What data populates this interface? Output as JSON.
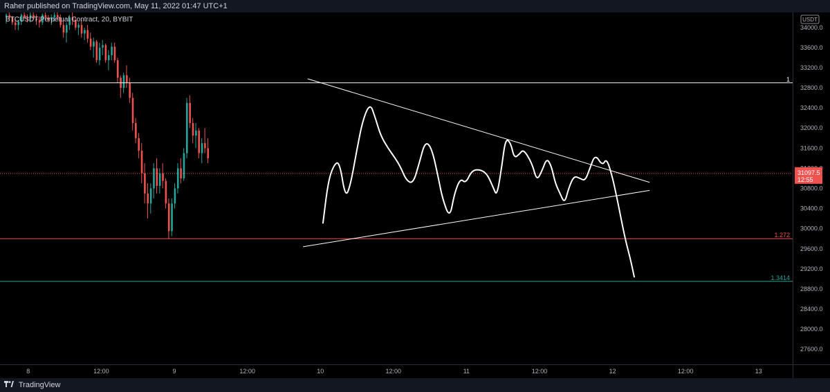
{
  "header": {
    "published": "Raher published on TradingView.com, May 11, 2022 01:47 UTC+1"
  },
  "symbol": {
    "label": "BTCUSDT Perpetual Contract, 20, BYBIT"
  },
  "currency": "USDT",
  "footer": {
    "brand": "TradingView"
  },
  "colors": {
    "background": "#000000",
    "up": "#26a69a",
    "down": "#ef5350",
    "projection": "#ffffff",
    "level_1": "#ffffff",
    "level_1272": "#ef5350",
    "level_13414": "#26a69a",
    "price_line": "#ef5350"
  },
  "chart_data": {
    "type": "candlestick",
    "title": "",
    "xlabel": "",
    "ylabel": "",
    "ylim": [
      27300,
      34300
    ],
    "y_ticks": [
      27600,
      28000,
      28400,
      28800,
      29200,
      29600,
      30000,
      30400,
      30800,
      31200,
      31600,
      32000,
      32400,
      32800,
      33200,
      33600,
      34000
    ],
    "y_tick_labels": [
      "27600.0",
      "28000.0",
      "28400.0",
      "28800.0",
      "29200.0",
      "29600.0",
      "30000.0",
      "30400.0",
      "30800.0",
      "31200.0",
      "31600.0",
      "32000.0",
      "32400.0",
      "32800.0",
      "33200.0",
      "33600.0",
      "34000.0"
    ],
    "x_domain": [
      0,
      109
    ],
    "x_ticks": [
      {
        "t": 3,
        "label": "8"
      },
      {
        "t": 14,
        "label": "12:00"
      },
      {
        "t": 25,
        "label": "9"
      },
      {
        "t": 36,
        "label": "12:00"
      },
      {
        "t": 47,
        "label": "10"
      },
      {
        "t": 58,
        "label": "12:00"
      },
      {
        "t": 69,
        "label": "11"
      },
      {
        "t": 80,
        "label": "12:00"
      },
      {
        "t": 91,
        "label": "12"
      },
      {
        "t": 102,
        "label": "12:00"
      },
      {
        "t": 113,
        "label": "13"
      }
    ],
    "current_price": {
      "value": 31097.5,
      "label": "31097.5",
      "countdown": "12:55"
    },
    "levels": [
      {
        "name": "1",
        "value": 32900
      },
      {
        "name": "1.272",
        "value": 29800
      },
      {
        "name": "1.3414",
        "value": 28950
      }
    ],
    "trendlines": [
      {
        "name": "upper",
        "from": [
          45.5,
          32980
        ],
        "to": [
          97,
          30920
        ]
      },
      {
        "name": "lower",
        "from": [
          44.8,
          29640
        ],
        "to": [
          97,
          30760
        ]
      }
    ],
    "projection": [
      [
        47.8,
        30100
      ],
      [
        48.6,
        30950
      ],
      [
        49.5,
        31280
      ],
      [
        50.3,
        31330
      ],
      [
        51.2,
        30600
      ],
      [
        52,
        30900
      ],
      [
        52.9,
        31560
      ],
      [
        53.8,
        32160
      ],
      [
        54.9,
        32500
      ],
      [
        55.7,
        32200
      ],
      [
        56.5,
        31850
      ],
      [
        57.6,
        31600
      ],
      [
        58.7,
        31400
      ],
      [
        59.5,
        31220
      ],
      [
        60.4,
        30950
      ],
      [
        61.4,
        30900
      ],
      [
        62.3,
        31300
      ],
      [
        63.2,
        31740
      ],
      [
        64.2,
        31600
      ],
      [
        65.2,
        31000
      ],
      [
        65.8,
        30600
      ],
      [
        66.9,
        30200
      ],
      [
        67.6,
        30700
      ],
      [
        68.5,
        31000
      ],
      [
        69.3,
        30900
      ],
      [
        70.2,
        31150
      ],
      [
        71.3,
        31180
      ],
      [
        72.5,
        31100
      ],
      [
        73.5,
        30800
      ],
      [
        74,
        30650
      ],
      [
        74.7,
        31200
      ],
      [
        75.3,
        31800
      ],
      [
        76.1,
        31700
      ],
      [
        76.6,
        31400
      ],
      [
        77.4,
        31480
      ],
      [
        78,
        31580
      ],
      [
        79.3,
        31300
      ],
      [
        80,
        30950
      ],
      [
        80.8,
        31150
      ],
      [
        81.5,
        31400
      ],
      [
        82.2,
        31250
      ],
      [
        82.8,
        30900
      ],
      [
        83.5,
        30700
      ],
      [
        84.2,
        30500
      ],
      [
        84.8,
        30800
      ],
      [
        85.6,
        31050
      ],
      [
        86.5,
        31000
      ],
      [
        87.3,
        30950
      ],
      [
        88,
        31200
      ],
      [
        88.8,
        31480
      ],
      [
        89.9,
        31250
      ],
      [
        90.5,
        31400
      ],
      [
        91.3,
        31080
      ],
      [
        92.1,
        30600
      ],
      [
        93,
        30000
      ],
      [
        93.5,
        29700
      ],
      [
        94.1,
        29400
      ],
      [
        94.7,
        29030
      ]
    ],
    "candles": [
      [
        34200,
        34280,
        34080,
        34250
      ],
      [
        34250,
        34300,
        34150,
        34200
      ],
      [
        34200,
        34230,
        34050,
        34100
      ],
      [
        34100,
        34180,
        33950,
        34050
      ],
      [
        34050,
        34150,
        33950,
        34120
      ],
      [
        34120,
        34280,
        34050,
        34250
      ],
      [
        34250,
        34300,
        34180,
        34200
      ],
      [
        34200,
        34260,
        34100,
        34180
      ],
      [
        34180,
        34300,
        34100,
        34250
      ],
      [
        34250,
        34300,
        34150,
        34180
      ],
      [
        34180,
        34260,
        34050,
        34150
      ],
      [
        34150,
        34220,
        34000,
        34100
      ],
      [
        34100,
        34280,
        34050,
        34250
      ],
      [
        34250,
        34300,
        34150,
        34200
      ],
      [
        34200,
        34250,
        34100,
        34150
      ],
      [
        34150,
        34260,
        34050,
        34200
      ],
      [
        34200,
        34300,
        34120,
        34250
      ],
      [
        34250,
        34300,
        34150,
        34200
      ],
      [
        34200,
        34260,
        34000,
        34050
      ],
      [
        34050,
        34150,
        33800,
        33900
      ],
      [
        33900,
        34100,
        33700,
        34050
      ],
      [
        34050,
        34250,
        33950,
        34200
      ],
      [
        34200,
        34300,
        34050,
        34150
      ],
      [
        34150,
        34200,
        33950,
        34000
      ],
      [
        34000,
        34100,
        33850,
        34050
      ],
      [
        34050,
        34150,
        33800,
        33880
      ],
      [
        33880,
        34000,
        33750,
        33950
      ],
      [
        33950,
        34050,
        33700,
        33780
      ],
      [
        33780,
        33900,
        33550,
        33620
      ],
      [
        33620,
        33800,
        33400,
        33720
      ],
      [
        33720,
        33750,
        33300,
        33350
      ],
      [
        33350,
        33700,
        33250,
        33600
      ],
      [
        33600,
        33750,
        33450,
        33650
      ],
      [
        33650,
        33680,
        33300,
        33350
      ],
      [
        33350,
        33550,
        33150,
        33450
      ],
      [
        33450,
        33700,
        33350,
        33620
      ],
      [
        33620,
        33700,
        33300,
        33350
      ],
      [
        33350,
        33400,
        32900,
        33000
      ],
      [
        33000,
        33050,
        32600,
        32800
      ],
      [
        32800,
        33100,
        32700,
        33050
      ],
      [
        33050,
        33250,
        32800,
        32900
      ],
      [
        32900,
        33000,
        32500,
        32600
      ],
      [
        32600,
        32700,
        31950,
        32100
      ],
      [
        32100,
        32200,
        31700,
        31800
      ],
      [
        31800,
        31900,
        31400,
        31550
      ],
      [
        31550,
        31700,
        30900,
        31100
      ],
      [
        31100,
        31300,
        30500,
        30700
      ],
      [
        30700,
        30900,
        30200,
        30500
      ],
      [
        30500,
        30900,
        30300,
        30800
      ],
      [
        30800,
        31300,
        30600,
        31200
      ],
      [
        31200,
        31400,
        30700,
        30850
      ],
      [
        30850,
        31200,
        30700,
        31100
      ],
      [
        31100,
        31300,
        30800,
        30950
      ],
      [
        30950,
        31000,
        30400,
        30500
      ],
      [
        30500,
        30600,
        29800,
        29950
      ],
      [
        29950,
        30600,
        29850,
        30500
      ],
      [
        30500,
        30900,
        30400,
        30800
      ],
      [
        30800,
        31300,
        30700,
        31200
      ],
      [
        31200,
        31400,
        30900,
        31000
      ],
      [
        31000,
        31600,
        30950,
        31500
      ],
      [
        31500,
        32600,
        31400,
        32500
      ],
      [
        32500,
        32650,
        32000,
        32100
      ],
      [
        32100,
        32200,
        31700,
        31850
      ],
      [
        31850,
        32100,
        31600,
        31950
      ],
      [
        31950,
        32000,
        31400,
        31500
      ],
      [
        31500,
        31800,
        31300,
        31700
      ],
      [
        31700,
        32000,
        31500,
        31600
      ],
      [
        31600,
        31800,
        31300,
        31400
      ],
      [
        31400,
        31700,
        31200,
        31600
      ],
      [
        31600,
        32400,
        31550,
        32300
      ],
      [
        32300,
        32350,
        31700,
        31800
      ],
      [
        31800,
        31900,
        31200,
        31350
      ],
      [
        31350,
        31600,
        31100,
        31500
      ],
      [
        31500,
        31600,
        30900,
        31000
      ],
      [
        31000,
        31300,
        30800,
        31200
      ],
      [
        31200,
        31800,
        31150,
        31700
      ],
      [
        31700,
        31800,
        31300,
        31450
      ],
      [
        31450,
        31500,
        30900,
        31050
      ],
      [
        31050,
        31200,
        30700,
        30800
      ],
      [
        30800,
        31100,
        30700,
        31000
      ],
      [
        31000,
        31050,
        30400,
        30550
      ],
      [
        30550,
        30700,
        30200,
        30300
      ],
      [
        30300,
        30700,
        30150,
        30650
      ],
      [
        30650,
        31000,
        30550,
        30900
      ],
      [
        30900,
        31200,
        30800,
        31100
      ]
    ],
    "candles_start": 0
  }
}
